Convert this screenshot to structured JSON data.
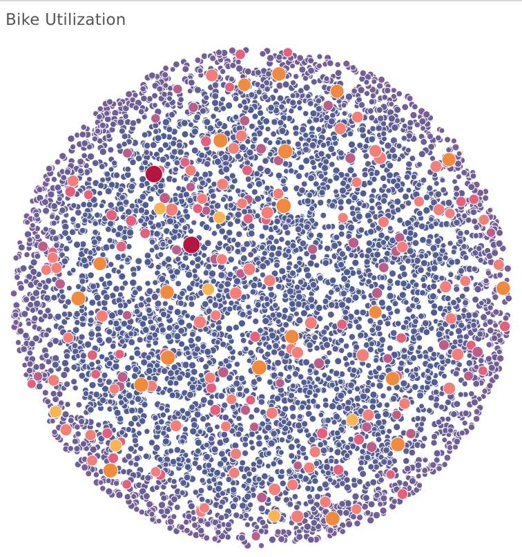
{
  "page": {
    "title": "Bike Utilization"
  },
  "chart_data": {
    "type": "packed-bubble",
    "title": "Bike Utilization",
    "color_scale": {
      "low": "#4b5d93",
      "mid": "#8a5d9a",
      "pink": "#e3617d",
      "salmon": "#f37f7b",
      "orange": "#f08a3e",
      "yellow": "#f7b556",
      "max": "#b5163f"
    },
    "background_count": 6000,
    "highlighted": [
      {
        "level": "max"
      },
      {
        "level": "max"
      },
      {
        "level": "orange"
      },
      {
        "level": "orange"
      },
      {
        "level": "orange"
      },
      {
        "level": "orange"
      },
      {
        "level": "orange"
      },
      {
        "level": "orange"
      },
      {
        "level": "orange"
      },
      {
        "level": "orange"
      },
      {
        "level": "orange"
      },
      {
        "level": "orange"
      },
      {
        "level": "orange"
      },
      {
        "level": "orange"
      },
      {
        "level": "orange"
      },
      {
        "level": "orange"
      },
      {
        "level": "orange"
      },
      {
        "level": "orange"
      },
      {
        "level": "orange"
      },
      {
        "level": "orange"
      },
      {
        "level": "orange"
      },
      {
        "level": "orange"
      },
      {
        "level": "yellow"
      },
      {
        "level": "yellow"
      },
      {
        "level": "yellow"
      },
      {
        "level": "yellow"
      },
      {
        "level": "yellow"
      },
      {
        "level": "yellow"
      },
      {
        "level": "yellow"
      }
    ],
    "salmon_count": 70,
    "pink_count": 90
  }
}
